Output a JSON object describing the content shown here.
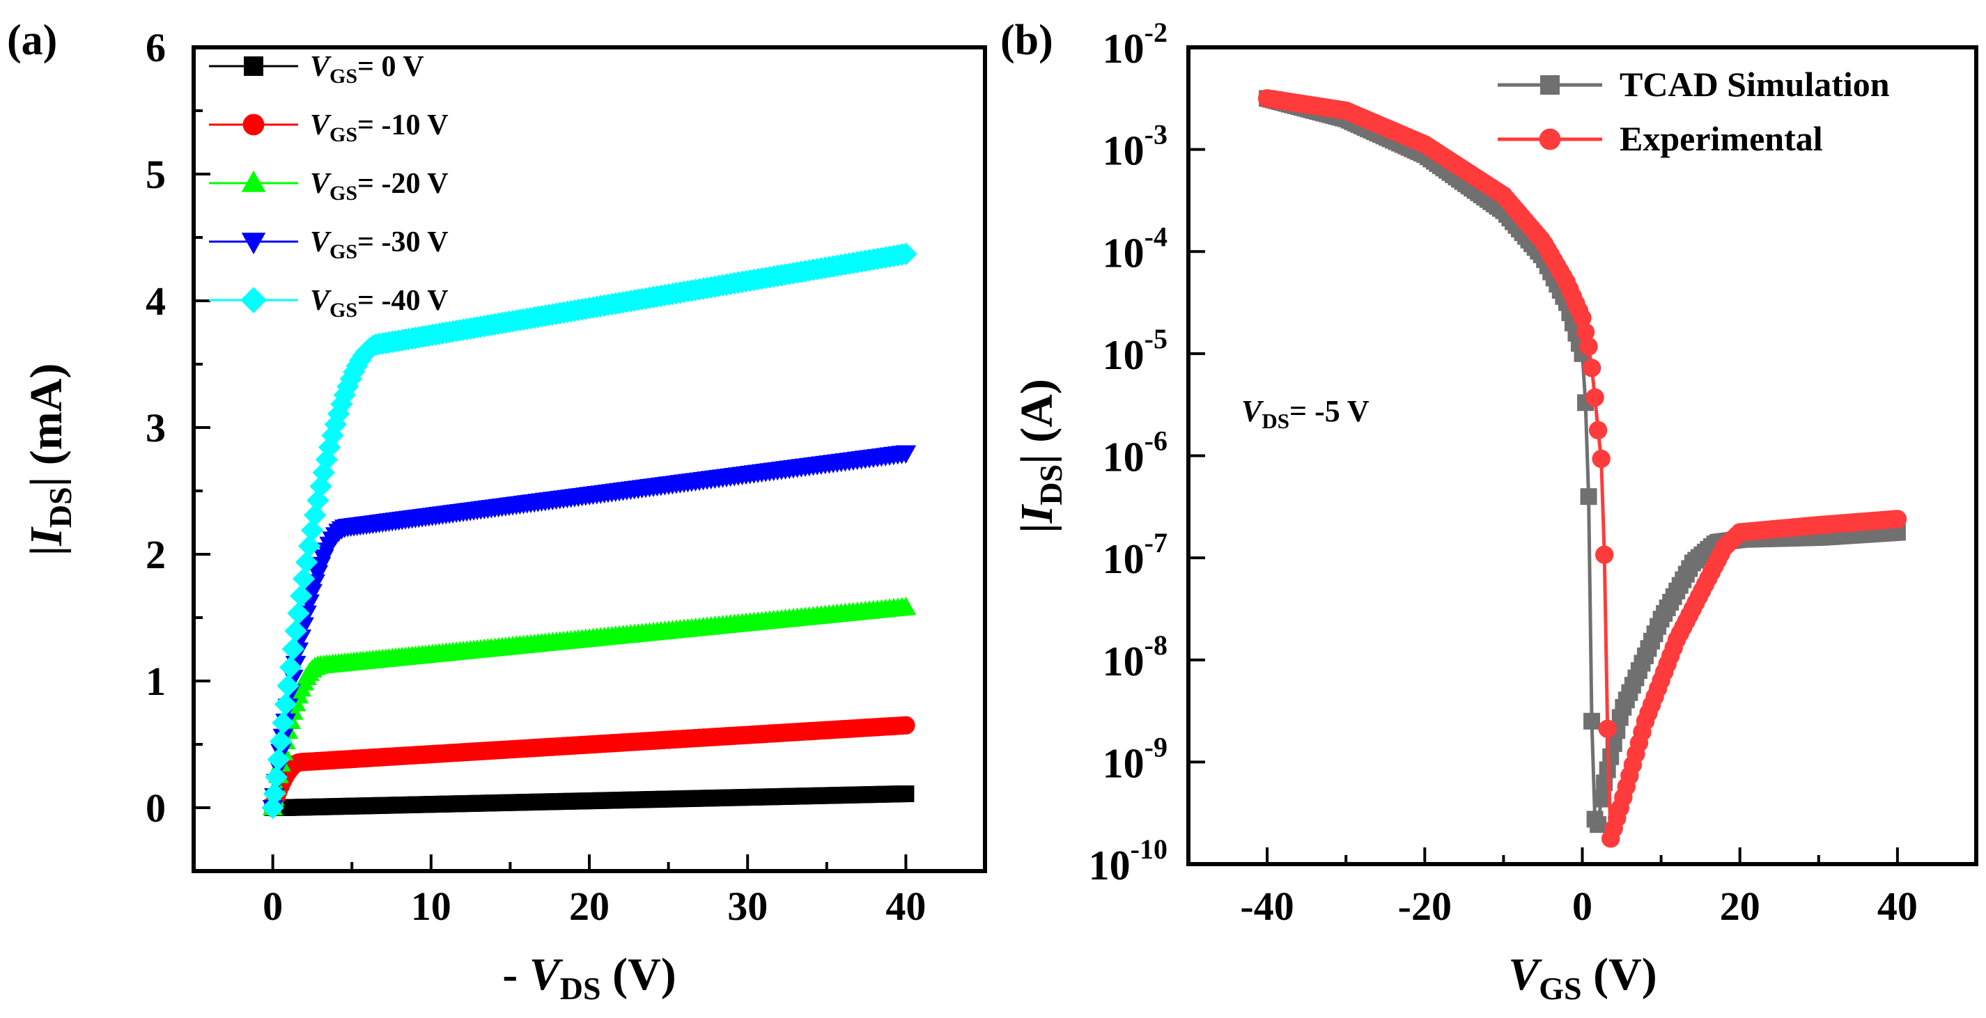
{
  "chart_data": [
    {
      "panel_label": "(a)",
      "type": "scatter",
      "xlabel_prefix": "- ",
      "xlabel_var": "V",
      "xlabel_sub": "DS",
      "xlabel_suffix": " (V)",
      "ylabel_pre": "|",
      "ylabel_var": "I",
      "ylabel_sub": "DS",
      "ylabel_suffix": "| (mA)",
      "xlim": [
        -5,
        45
      ],
      "ylim": [
        -0.5,
        6
      ],
      "x_ticks": [
        0,
        10,
        20,
        30,
        40
      ],
      "y_ticks": [
        0,
        1,
        2,
        3,
        4,
        5,
        6
      ],
      "x_tick_labels": [
        "0",
        "10",
        "20",
        "30",
        "40"
      ],
      "y_tick_labels": [
        "0",
        "1",
        "2",
        "3",
        "4",
        "5",
        "6"
      ],
      "grid": false,
      "legend_position": "top-left",
      "series": [
        {
          "name_var": "V",
          "name_sub": "GS",
          "name_val": "= 0 V",
          "color": "#000000",
          "marker": "square",
          "vsat": 0.5,
          "isat": 0.0,
          "iend": 0.11,
          "points": 180
        },
        {
          "name_var": "V",
          "name_sub": "GS",
          "name_val": "= -10 V",
          "color": "#ff0000",
          "marker": "circle",
          "vsat": 1.8,
          "isat": 0.36,
          "iend": 0.65,
          "points": 180
        },
        {
          "name_var": "V",
          "name_sub": "GS",
          "name_val": "= -20 V",
          "color": "#00ff00",
          "marker": "triangle-up",
          "vsat": 3.0,
          "isat": 1.12,
          "iend": 1.58,
          "points": 180
        },
        {
          "name_var": "V",
          "name_sub": "GS",
          "name_val": "= -30 V",
          "color": "#0000ff",
          "marker": "triangle-down",
          "vsat": 4.8,
          "isat": 2.22,
          "iend": 2.8,
          "points": 180
        },
        {
          "name_var": "V",
          "name_sub": "GS",
          "name_val": "= -40 V",
          "color": "#00ffff",
          "marker": "diamond",
          "vsat": 6.8,
          "isat": 3.66,
          "iend": 4.37,
          "points": 180
        }
      ]
    },
    {
      "panel_label": "(b)",
      "type": "line",
      "yscale": "log",
      "xlabel_var": "V",
      "xlabel_sub": "GS",
      "xlabel_suffix": " (V)",
      "ylabel_pre": "|",
      "ylabel_var": "I",
      "ylabel_sub": "DS",
      "ylabel_suffix": "| (A)",
      "xlim": [
        -50,
        50
      ],
      "ylim_exp": [
        -10,
        -2
      ],
      "x_ticks": [
        -40,
        -20,
        0,
        20,
        40
      ],
      "x_tick_labels": [
        "-40",
        "-20",
        "0",
        "20",
        "40"
      ],
      "y_tick_exponents": [
        -10,
        -9,
        -8,
        -7,
        -6,
        -5,
        -4,
        -3,
        -2
      ],
      "y_tick_base": "10",
      "y_tick_exp_labels": [
        "-10",
        "-9",
        "-8",
        "-7",
        "-6",
        "-5",
        "-4",
        "-3",
        "-2"
      ],
      "grid": false,
      "legend_position": "top-right",
      "annotation": {
        "var": "V",
        "sub": "DS",
        "val": "= -5 V"
      },
      "series": [
        {
          "name": "TCAD Simulation",
          "color": "#707070",
          "marker": "square",
          "key_points": [
            [
              -40,
              -2.5
            ],
            [
              -30,
              -2.7
            ],
            [
              -20,
              -3.05
            ],
            [
              -10,
              -3.6
            ],
            [
              -5,
              -4.05
            ],
            [
              -2,
              -4.5
            ],
            [
              0,
              -5.0
            ],
            [
              0.5,
              -5.6
            ],
            [
              0.8,
              -6.4
            ],
            [
              1.0,
              -7.4
            ],
            [
              1.2,
              -8.6
            ],
            [
              1.7,
              -9.8
            ],
            [
              2.5,
              -9.3
            ],
            [
              5,
              -8.5
            ],
            [
              10,
              -7.6
            ],
            [
              14,
              -7.05
            ],
            [
              17,
              -6.85
            ],
            [
              20,
              -6.82
            ],
            [
              30,
              -6.8
            ],
            [
              40,
              -6.75
            ]
          ]
        },
        {
          "name": "Experimental",
          "color": "#ff3b3b",
          "marker": "circle",
          "key_points": [
            [
              -40,
              -2.5
            ],
            [
              -30,
              -2.62
            ],
            [
              -20,
              -2.95
            ],
            [
              -10,
              -3.45
            ],
            [
              -5,
              -3.9
            ],
            [
              -2,
              -4.3
            ],
            [
              0,
              -4.65
            ],
            [
              1.0,
              -5.0
            ],
            [
              1.5,
              -5.35
            ],
            [
              2.0,
              -5.75
            ],
            [
              2.5,
              -6.1
            ],
            [
              3.0,
              -7.55
            ],
            [
              3.4,
              -9.8
            ],
            [
              5,
              -9.4
            ],
            [
              8,
              -8.6
            ],
            [
              12,
              -7.8
            ],
            [
              16,
              -7.2
            ],
            [
              18,
              -6.9
            ],
            [
              20,
              -6.75
            ],
            [
              30,
              -6.68
            ],
            [
              40,
              -6.62
            ]
          ]
        }
      ]
    }
  ]
}
